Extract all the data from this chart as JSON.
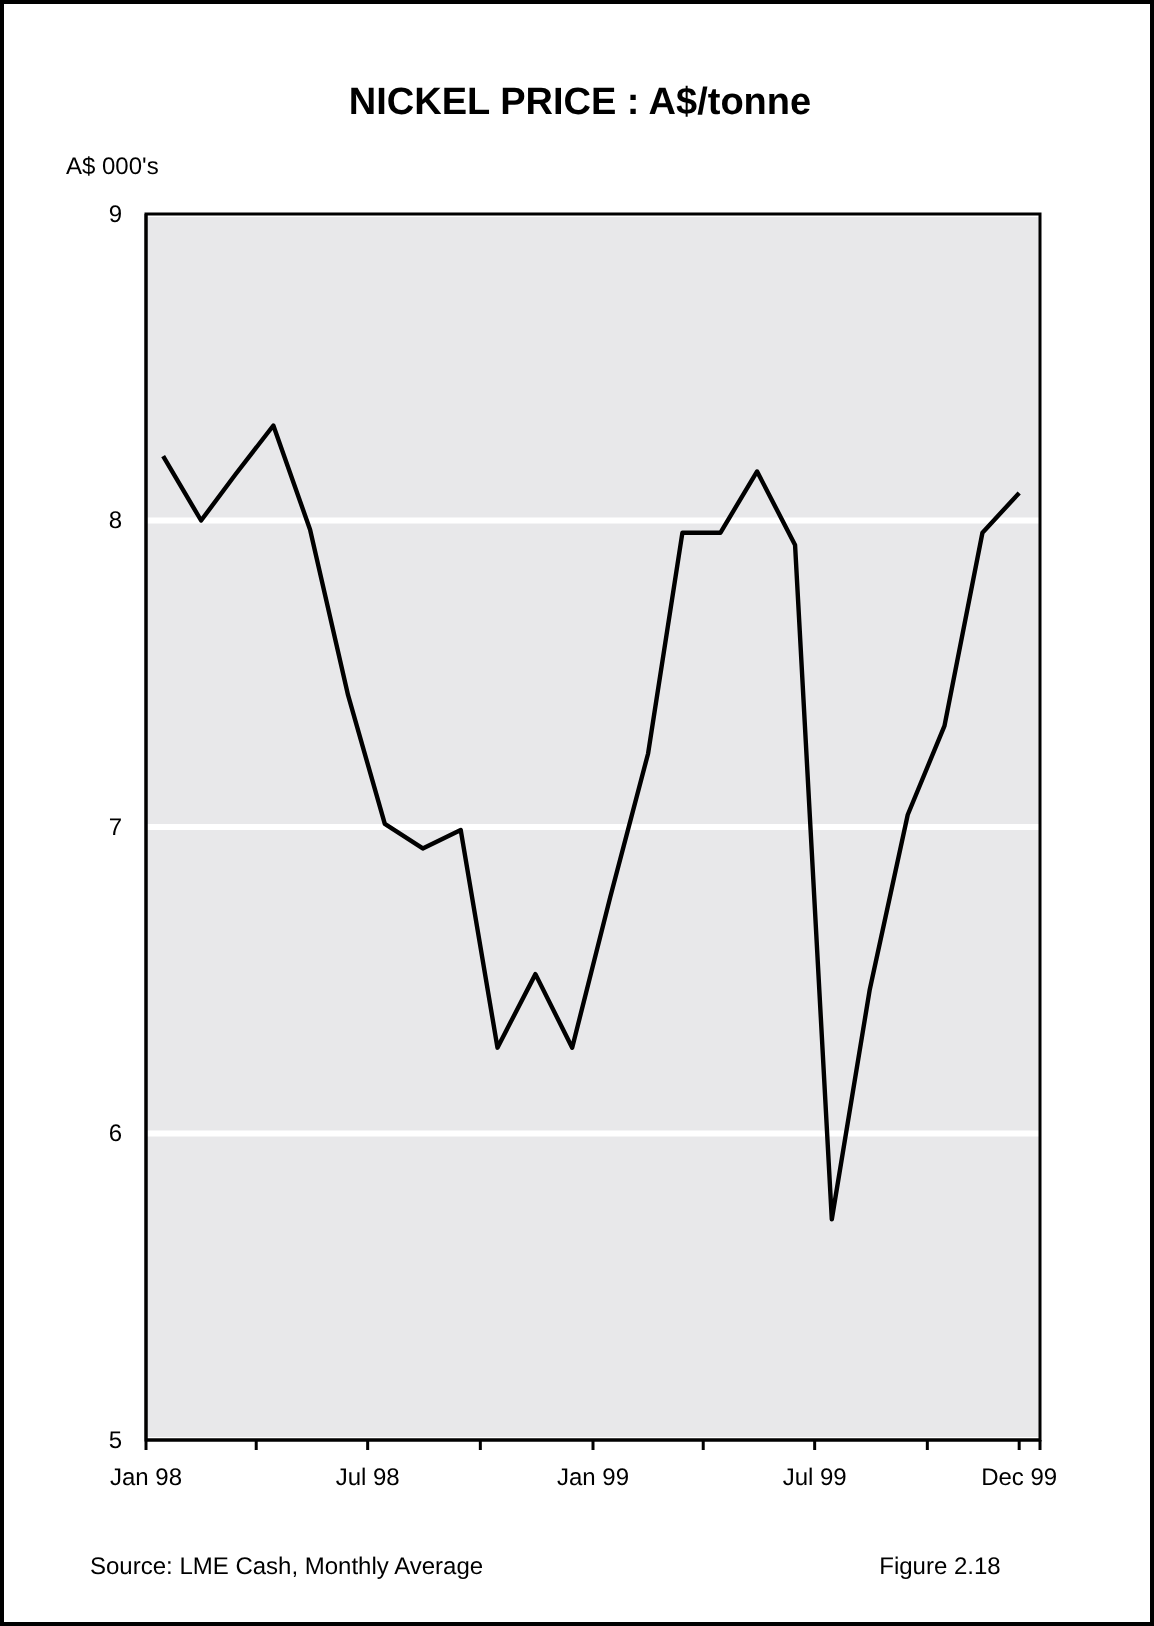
{
  "chart_data": {
    "type": "line",
    "title": "NICKEL PRICE : A$/tonne",
    "ylabel": "A$ 000's",
    "x": [
      "1998-01-15",
      "1998-02-15",
      "1998-03-15",
      "1998-04-15",
      "1998-05-15",
      "1998-06-15",
      "1998-07-15",
      "1998-08-15",
      "1998-09-15",
      "1998-10-15",
      "1998-11-15",
      "1998-12-15",
      "1999-01-15",
      "1999-02-15",
      "1999-03-15",
      "1999-04-15",
      "1999-05-15",
      "1999-06-15",
      "1999-07-15",
      "1999-08-15",
      "1999-09-15",
      "1999-10-15",
      "1999-11-15",
      "1999-12-15"
    ],
    "series": [
      {
        "color": "#000000",
        "values": [
          8.21,
          8.0,
          8.15,
          8.31,
          7.97,
          7.43,
          7.01,
          6.93,
          6.99,
          6.28,
          6.52,
          6.28,
          6.77,
          7.24,
          7.96,
          7.96,
          8.16,
          7.92,
          5.72,
          6.47,
          7.04,
          7.33,
          7.96,
          8.09
        ]
      }
    ],
    "xlim": [
      "1998-01",
      "2000-01"
    ],
    "xticks": [
      {
        "value": "1998-01",
        "label": "Jan 98"
      },
      {
        "value": "1998-04",
        "label": null
      },
      {
        "value": "1998-07",
        "label": "Jul 98"
      },
      {
        "value": "1998-10",
        "label": null
      },
      {
        "value": "1999-01",
        "label": "Jan 99"
      },
      {
        "value": "1999-04",
        "label": null
      },
      {
        "value": "1999-07",
        "label": "Jul 99"
      },
      {
        "value": "1999-10",
        "label": null
      },
      {
        "value": "1999-12-15",
        "label": "Dec 99"
      },
      {
        "value": "2000-01",
        "label": null
      }
    ],
    "ylim": [
      5,
      9
    ],
    "yticks": [
      5,
      6,
      7,
      8,
      9
    ],
    "grid": "y",
    "marker": "none",
    "line_style": "solid",
    "annotations": [
      "Source:  LME Cash, Monthly Average",
      "Figure 2.18"
    ]
  }
}
